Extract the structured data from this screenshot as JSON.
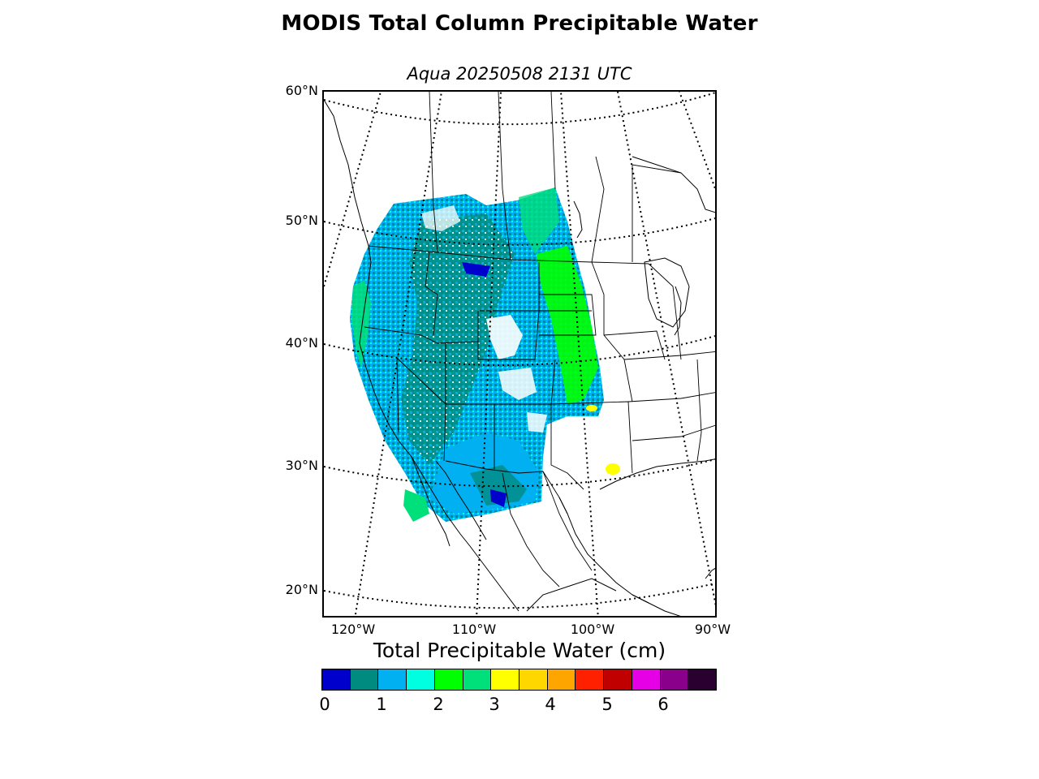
{
  "figure": {
    "title": "MODIS Total Column Precipitable Water",
    "subtitle": "Aqua 20250508 2131 UTC"
  },
  "map": {
    "projection": "lambert-conformal",
    "lat_labels": [
      "60°N",
      "50°N",
      "40°N",
      "30°N",
      "20°N"
    ],
    "lon_labels": [
      "120°W",
      "110°W",
      "100°W",
      "90°W"
    ],
    "graticule_style": "dotted",
    "land_outline_color": "#000000",
    "data_coverage": "western United States, northern Mexico and southwestern Canada swath",
    "dominant_values_cm": "0.5-2.5"
  },
  "colorbar": {
    "label": "Total Precipitable Water (cm)",
    "ticks": [
      "0",
      "1",
      "2",
      "3",
      "4",
      "5",
      "6"
    ],
    "range": [
      0,
      7
    ],
    "colors": [
      "#0000cd",
      "#008b80",
      "#00b0f0",
      "#00ffe0",
      "#00ff00",
      "#00e07a",
      "#ffff00",
      "#ffd700",
      "#ffa500",
      "#ff2000",
      "#c00000",
      "#e600e6",
      "#8b008b",
      "#2a0030"
    ]
  }
}
